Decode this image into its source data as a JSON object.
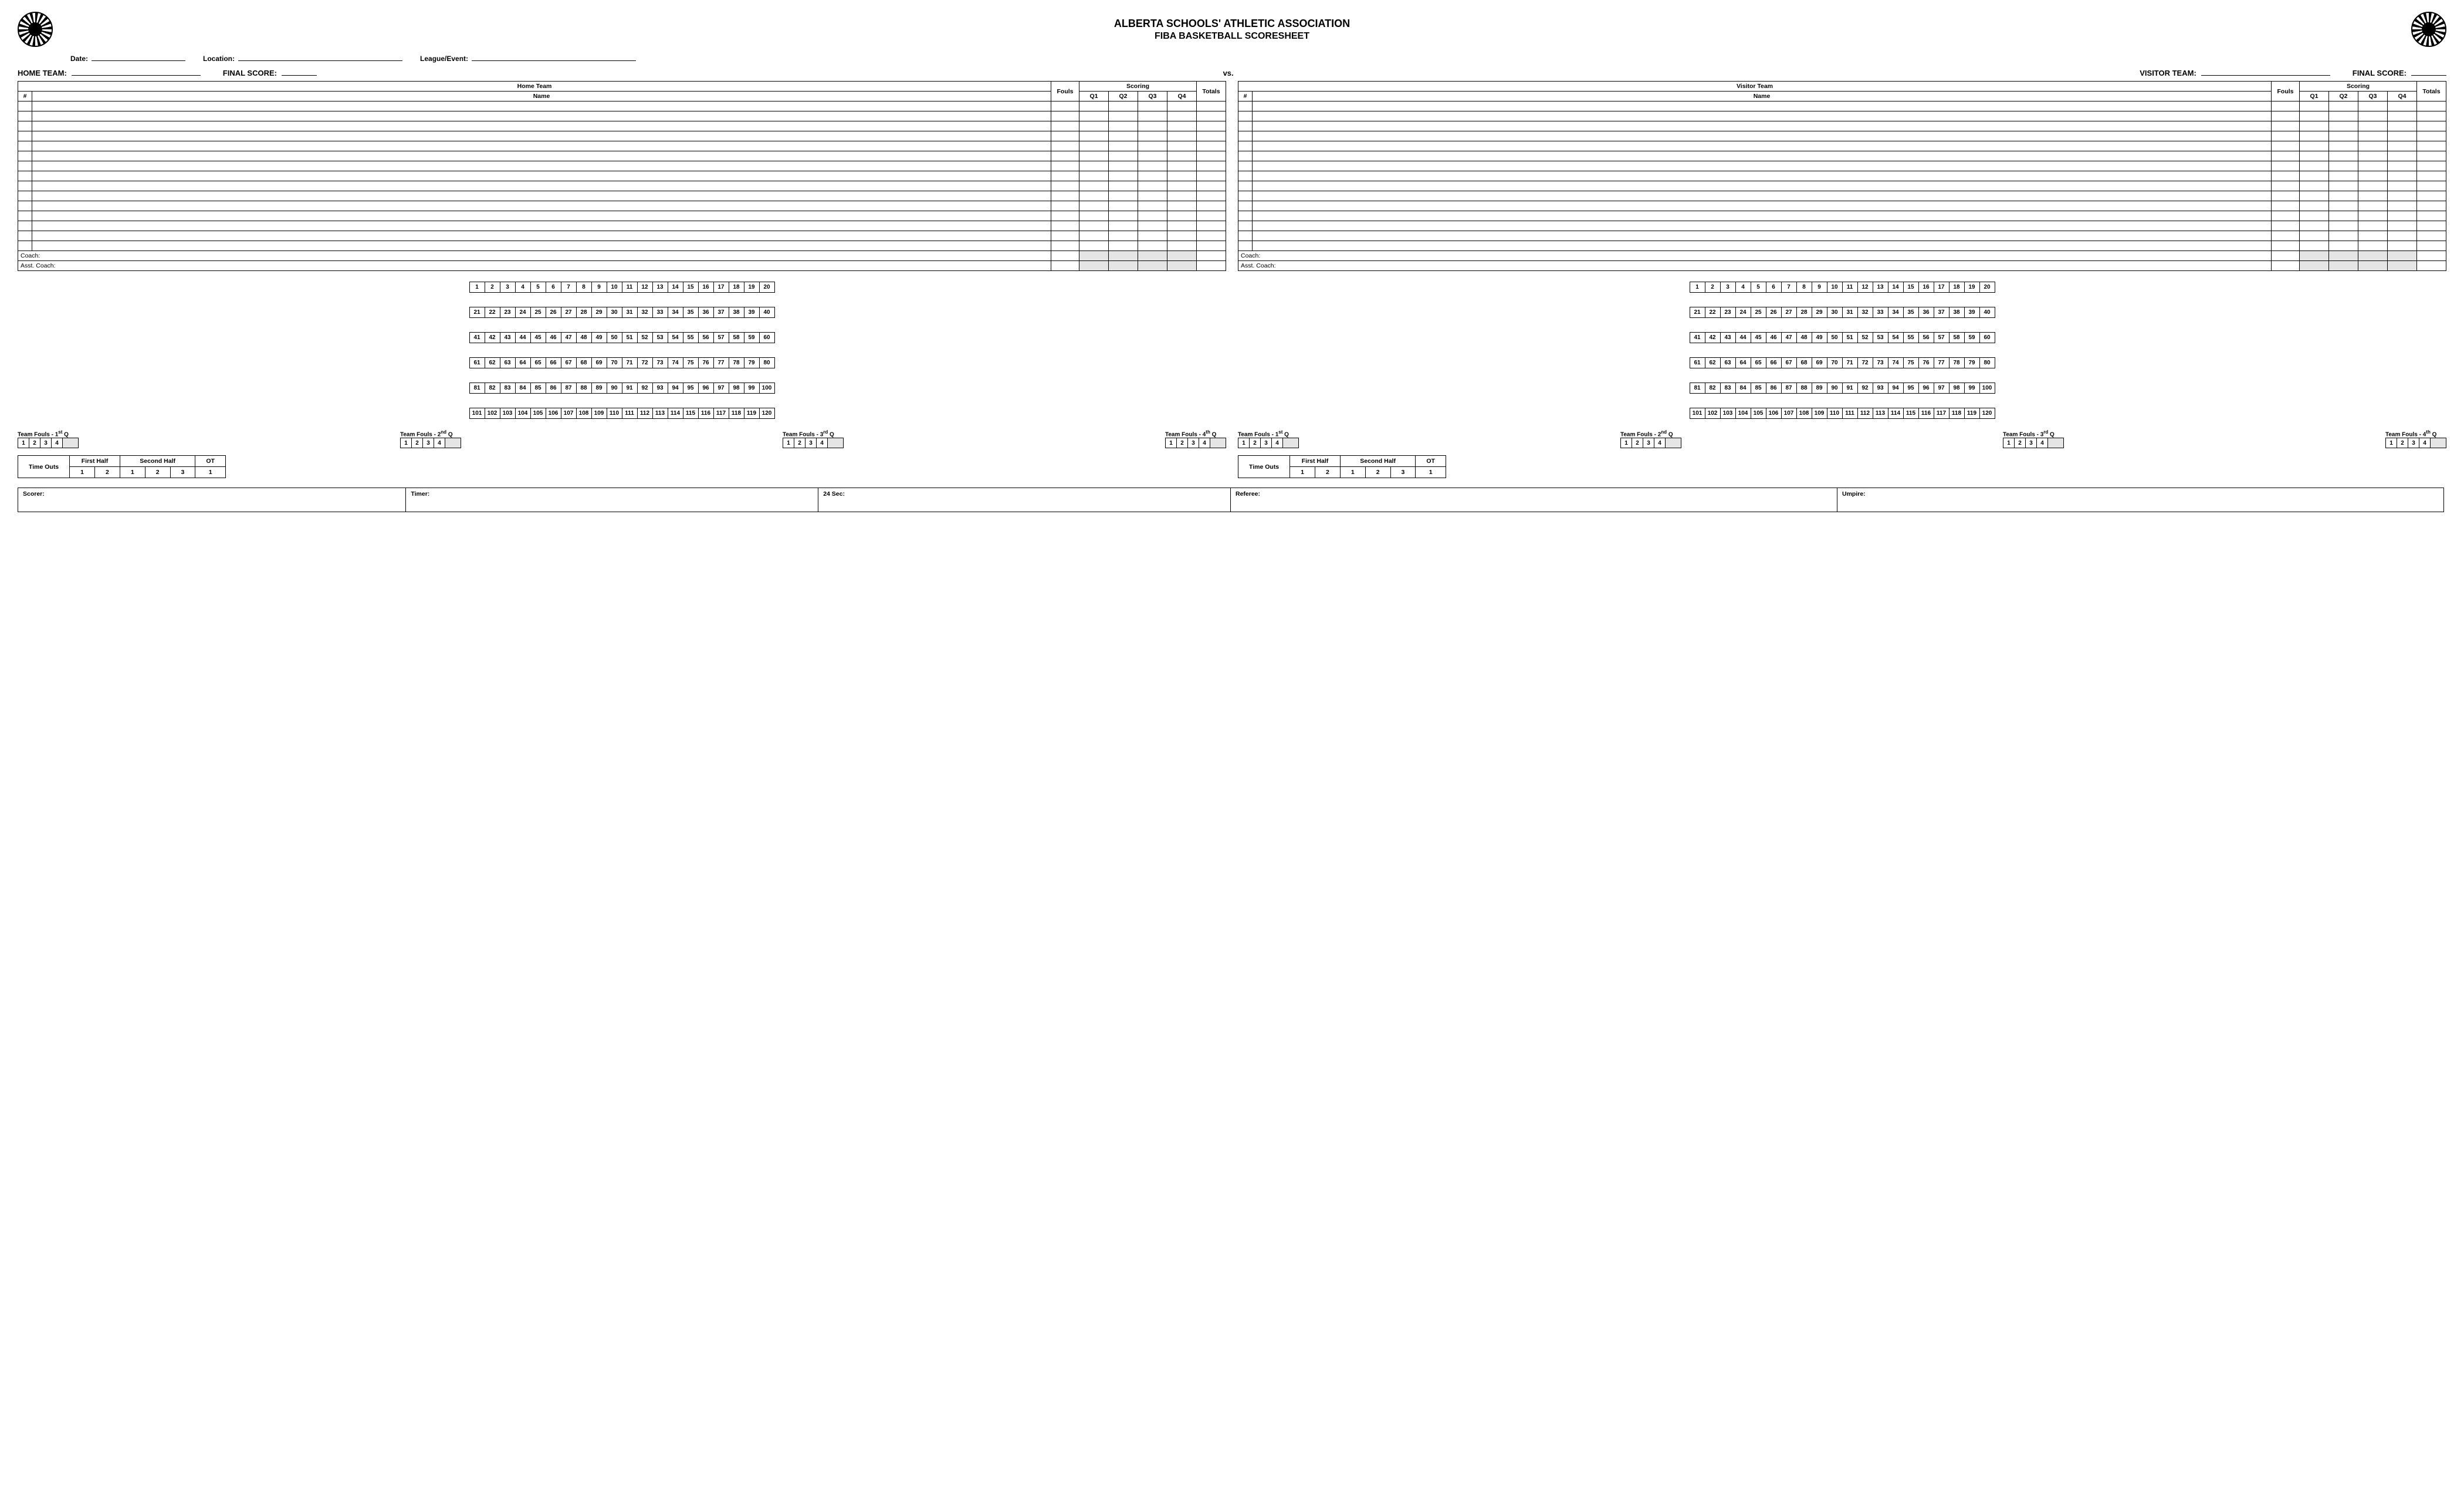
{
  "org_title": "ALBERTA SCHOOLS' ATHLETIC ASSOCIATION",
  "doc_title": "FIBA BASKETBALL SCORESHEET",
  "labels": {
    "date": "Date:",
    "location": "Location:",
    "league": "League/Event:",
    "home_team": "HOME TEAM:",
    "visitor_team": "VISITOR TEAM:",
    "final_score": "FINAL SCORE:",
    "vs": "vs.",
    "home_hdr": "Home Team",
    "visitor_hdr": "Visitor Team",
    "num": "#",
    "name": "Name",
    "fouls": "Fouls",
    "scoring": "Scoring",
    "q1": "Q1",
    "q2": "Q2",
    "q3": "Q3",
    "q4": "Q4",
    "totals": "Totals",
    "coach": "Coach:",
    "asst": "Asst. Coach:",
    "tf1": "Team Fouls - 1",
    "tf1s": "st",
    "tfq": " Q",
    "tf2": "Team Fouls - 2",
    "tf2s": "nd",
    "tf3": "Team Fouls - 3",
    "tf3s": "rd",
    "tf4": "Team Fouls - 4",
    "tf4s": "th",
    "timeouts": "Time Outs",
    "first_half": "First Half",
    "second_half": "Second Half",
    "ot": "OT",
    "scorer": "Scorer:",
    "timer": "Timer:",
    "sec24": "24 Sec:",
    "referee": "Referee:",
    "umpire": "Umpire:"
  },
  "roster_rows": 15,
  "running_rows": 6,
  "running_cols": 20,
  "tf_nums": [
    "1",
    "2",
    "3",
    "4"
  ],
  "to_first": [
    "1",
    "2"
  ],
  "to_second": [
    "1",
    "2",
    "3"
  ],
  "to_ot": [
    "1"
  ]
}
